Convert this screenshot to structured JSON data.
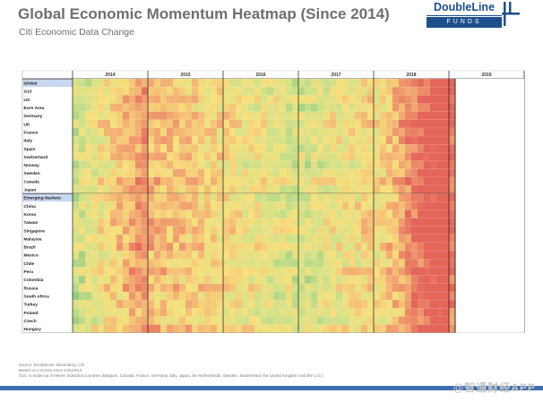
{
  "title": "Global Economic Momentum Heatmap (Since 2014)",
  "subtitle": "Citi Economic Data Change",
  "logo": {
    "name": "DoubleLine",
    "sub": "FUNDS"
  },
  "footnotes": [
    "Source: DoubleLine, Bloomberg, Citi",
    "Based on z-scores since 1/31/2014",
    "G10: is made up of eleven industrial countries (Belgium, Canada, France, Germany, Italy, Japan, the Netherlands, Sweden, Switzerland, the United Kingdom and the U.S.)"
  ],
  "watermark": "@智通财经APP",
  "colors": {
    "strong_neg": "#e4655a",
    "neg": "#f2a570",
    "neutral": "#f7e07c",
    "pos": "#cfe18a",
    "strong_pos": "#8cc97c",
    "grid": "#1a1a1a",
    "row_highlight": "#c9d7f0"
  },
  "chart_data": {
    "type": "heatmap",
    "title": "Global Economic Momentum Heatmap (Since 2014)",
    "subtitle": "Citi Economic Data Change",
    "value_scale": "z-score, -2 (red, weaker) to +2 (green, stronger)",
    "years": [
      "2014",
      "2015",
      "2016",
      "2017",
      "2018",
      "2019"
    ],
    "months_per_year": 12,
    "periods": 61,
    "rows": [
      {
        "label": "Global",
        "header": true
      },
      {
        "label": "G10"
      },
      {
        "label": "US"
      },
      {
        "label": "Euro Area"
      },
      {
        "label": "Germany"
      },
      {
        "label": "UK"
      },
      {
        "label": "France"
      },
      {
        "label": "Italy"
      },
      {
        "label": "Spain"
      },
      {
        "label": "Switzerland"
      },
      {
        "label": "Norway"
      },
      {
        "label": "Sweden"
      },
      {
        "label": "Canada"
      },
      {
        "label": "Japan"
      },
      {
        "label": "Emerging Markets",
        "header": true
      },
      {
        "label": "China"
      },
      {
        "label": "Korea"
      },
      {
        "label": "Taiwan"
      },
      {
        "label": "Singapore"
      },
      {
        "label": "Malaysia"
      },
      {
        "label": "Brazil"
      },
      {
        "label": "Mexico"
      },
      {
        "label": "Chile"
      },
      {
        "label": "Peru"
      },
      {
        "label": "Colombia"
      },
      {
        "label": "Russia"
      },
      {
        "label": "South Africa"
      },
      {
        "label": "Turkey"
      },
      {
        "label": "Poland"
      },
      {
        "label": "Czech"
      },
      {
        "label": "Hungary"
      }
    ],
    "regime_by_year": [
      {
        "year": "2014",
        "tone": "mixed, green-leaning early, red late"
      },
      {
        "year": "2015",
        "tone": "negative, red-heavy"
      },
      {
        "year": "2016",
        "tone": "mixed, turning yellow/green"
      },
      {
        "year": "2017",
        "tone": "positive, green-heavy"
      },
      {
        "year": "2018",
        "tone": "fading, red late in year"
      },
      {
        "year": "2019",
        "tone": "first month only, red"
      }
    ]
  }
}
